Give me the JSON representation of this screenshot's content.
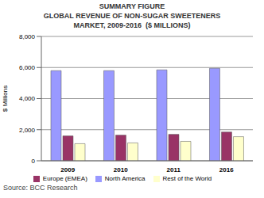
{
  "chart_data": {
    "type": "bar",
    "heading": "SUMMARY FIGURE",
    "title": [
      "GLOBAL REVENUE OF NON-SUGAR SWEETENERS",
      "MARKET, 2009-2016  ($ MILLIONS)"
    ],
    "y_label": "$ Millions",
    "source": "Source: BCC Research",
    "categories": [
      "2009",
      "2010",
      "2011",
      "2016"
    ],
    "series": [
      {
        "name": "North America",
        "color": "#9999ff",
        "values": [
          5800,
          5800,
          5850,
          5950
        ]
      },
      {
        "name": "Europe (EMEA)",
        "color": "#993366",
        "values": [
          1600,
          1650,
          1700,
          1850
        ]
      },
      {
        "name": "Rest of the World",
        "color": "#ffffcc",
        "values": [
          1100,
          1150,
          1250,
          1550
        ]
      }
    ],
    "ylim": [
      0,
      8000
    ],
    "yticks": [
      0,
      {
        "value": 2000,
        "label": "2,000"
      },
      {
        "value": 4000,
        "label": "4,000"
      },
      {
        "value": 6000,
        "label": "6,000"
      },
      {
        "value": 8000,
        "label": "8,000"
      }
    ],
    "grid": true,
    "legend": "bottom"
  }
}
